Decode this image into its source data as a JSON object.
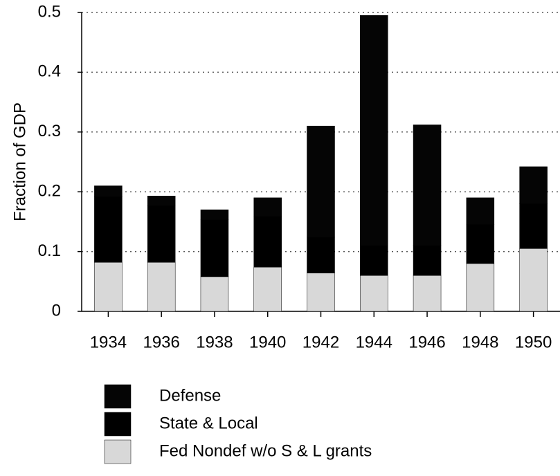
{
  "chart_data": {
    "type": "stacked_bar",
    "y_label": "Fraction of GDP",
    "categories": [
      "1934",
      "1936",
      "1938",
      "1940",
      "1942",
      "1944",
      "1946",
      "1948",
      "1950"
    ],
    "series": [
      {
        "name": "Defense",
        "color": "#050505",
        "values": [
          0.018,
          0.016,
          0.017,
          0.031,
          0.186,
          0.385,
          0.202,
          0.045,
          0.062
        ]
      },
      {
        "name": "State & Local",
        "color": "#000000",
        "values": [
          0.11,
          0.095,
          0.095,
          0.085,
          0.06,
          0.05,
          0.05,
          0.065,
          0.075
        ]
      },
      {
        "name": "Fed Nondef w/o S & L grants",
        "color": "#d8d8d8",
        "values": [
          0.082,
          0.082,
          0.058,
          0.074,
          0.064,
          0.06,
          0.06,
          0.08,
          0.105
        ]
      }
    ],
    "ylim": [
      0,
      0.5
    ],
    "yticks": [
      0,
      0.1,
      0.2,
      0.3,
      0.4,
      0.5
    ],
    "grid": true
  }
}
